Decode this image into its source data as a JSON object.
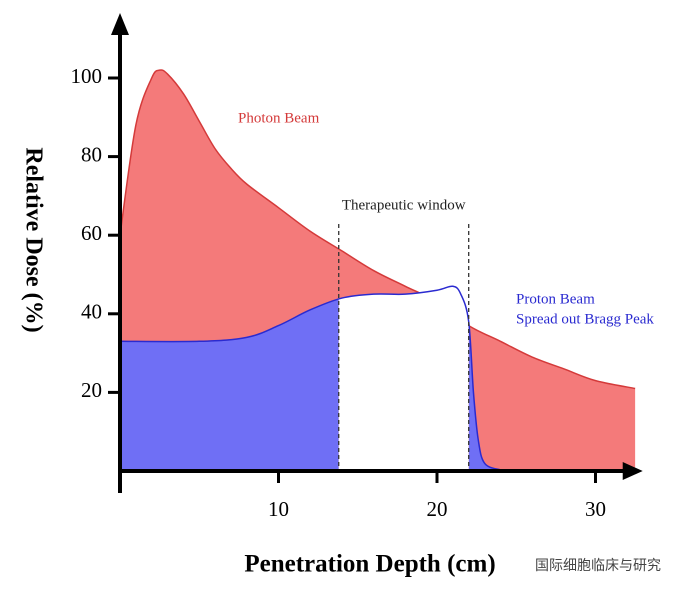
{
  "chart_data": {
    "type": "area",
    "xlabel": "Penetration Depth (cm)",
    "ylabel": "Relative Dose (%)",
    "xlim": [
      0,
      32.6
    ],
    "ylim": [
      0,
      115
    ],
    "xticks": [
      10,
      20,
      30
    ],
    "yticks": [
      20,
      40,
      60,
      80,
      100
    ],
    "series": [
      {
        "name": "Photon Beam",
        "color": "#f47a7a",
        "line_color": "#d43a3a",
        "x": [
          0,
          1,
          2,
          2.5,
          3,
          4,
          5,
          6,
          7,
          8,
          10,
          12,
          14,
          16,
          18,
          20,
          22,
          24,
          26,
          28,
          30,
          32.5
        ],
        "values": [
          60,
          88,
          100,
          102,
          101,
          96,
          89,
          82,
          77,
          73,
          67,
          61,
          56,
          51,
          47,
          43,
          37,
          33,
          29,
          26,
          23,
          21
        ]
      },
      {
        "name": "Proton Beam",
        "description": "Spread out Bragg Peak",
        "color": "#6f6ff5",
        "line_color": "#2a2ad0",
        "x": [
          0,
          5,
          8,
          10,
          12,
          14,
          16,
          18,
          20,
          21,
          21.5,
          22,
          22.3,
          22.6,
          23,
          24,
          25
        ],
        "values": [
          33,
          33,
          34,
          37,
          41,
          44,
          45,
          45,
          46,
          47,
          45,
          38,
          20,
          8,
          2,
          0.3,
          0
        ]
      }
    ],
    "window": {
      "label": "Therapeutic window",
      "range": [
        13.8,
        22
      ]
    },
    "watermark": "国际细胞临床与研究"
  }
}
